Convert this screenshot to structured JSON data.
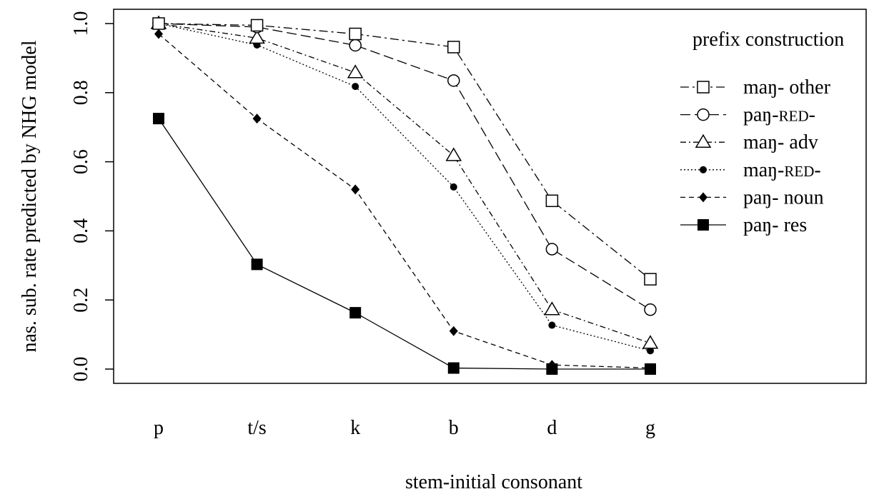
{
  "chart_data": {
    "type": "line",
    "title": "",
    "xlabel": "stem-initial consonant",
    "ylabel": "nas. sub. rate predicted by NHG model",
    "categories": [
      "p",
      "t/s",
      "k",
      "b",
      "d",
      "g"
    ],
    "ylim": [
      0,
      1
    ],
    "yticks": [
      "0.0",
      "0.2",
      "0.4",
      "0.6",
      "0.8",
      "1.0"
    ],
    "grid": false,
    "legend": {
      "title": "prefix construction",
      "placement": "top-right"
    },
    "series": [
      {
        "name": "maŋ- other",
        "prefix": "maŋ-",
        "suffix": " other",
        "smallcaps": "",
        "marker": "open-square",
        "dash": "12 5 3 5",
        "values": [
          1.0,
          0.995,
          0.97,
          0.932,
          0.487,
          0.26
        ]
      },
      {
        "name": "paŋ-RED-",
        "prefix": "paŋ-",
        "suffix": "-",
        "smallcaps": "red",
        "marker": "open-circle",
        "dash": "14 6",
        "values": [
          1.0,
          0.99,
          0.937,
          0.835,
          0.347,
          0.172
        ]
      },
      {
        "name": "maŋ- adv",
        "prefix": "maŋ-",
        "suffix": " adv",
        "smallcaps": "",
        "marker": "open-triangle",
        "dash": "8 4 2 4",
        "values": [
          1.0,
          0.958,
          0.858,
          0.618,
          0.172,
          0.075
        ]
      },
      {
        "name": "maŋ-RED-",
        "prefix": "maŋ-",
        "suffix": "-",
        "smallcaps": "red",
        "marker": "filled-circle",
        "dash": "2 3",
        "values": [
          1.0,
          0.938,
          0.818,
          0.527,
          0.127,
          0.053
        ]
      },
      {
        "name": "paŋ- noun",
        "prefix": "paŋ-",
        "suffix": " noun",
        "smallcaps": "",
        "marker": "filled-diamond",
        "dash": "7 5",
        "values": [
          0.97,
          0.725,
          0.52,
          0.11,
          0.012,
          0.003
        ]
      },
      {
        "name": "paŋ- res",
        "prefix": "paŋ-",
        "suffix": " res",
        "smallcaps": "",
        "marker": "filled-square",
        "dash": "",
        "values": [
          0.725,
          0.303,
          0.163,
          0.003,
          0.0,
          0.0
        ]
      }
    ]
  }
}
